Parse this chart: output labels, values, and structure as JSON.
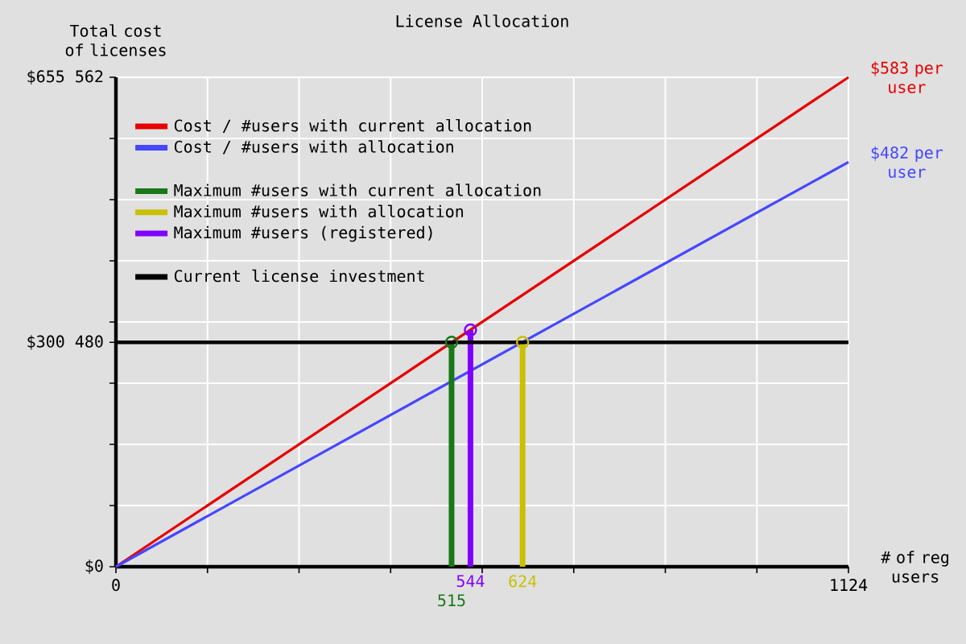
{
  "chart_data": {
    "type": "line",
    "title": "License Allocation",
    "xlabel": "# of reg users",
    "ylabel": "Total cost of licenses",
    "xlim": [
      0,
      1124
    ],
    "ylim": [
      0,
      655562
    ],
    "xticks": [
      0,
      {
        "value": 140.5,
        "label": null
      },
      {
        "value": 281,
        "label": null
      },
      {
        "value": 421.5,
        "label": null
      },
      {
        "value": 562,
        "label": null
      },
      {
        "value": 702.5,
        "label": null
      },
      {
        "value": 843,
        "label": null
      },
      {
        "value": 983.5,
        "label": null
      },
      1124
    ],
    "yticks": [
      {
        "value": 0,
        "label": "$0"
      },
      {
        "value": 81945.25,
        "label": null
      },
      {
        "value": 163890.5,
        "label": null
      },
      {
        "value": 245835.75,
        "label": null
      },
      {
        "value": 300480,
        "label": "$300 480"
      },
      {
        "value": 327781,
        "label": null
      },
      {
        "value": 409726.25,
        "label": null
      },
      {
        "value": 491671.5,
        "label": null
      },
      {
        "value": 573616.75,
        "label": null
      },
      {
        "value": 655562,
        "label": "$655 562"
      }
    ],
    "grid": true,
    "legend": "top left",
    "series": [
      {
        "name": "Cost / #users with current allocation",
        "color": "#e60000",
        "x": [
          0,
          1124
        ],
        "values": [
          0,
          655562
        ]
      },
      {
        "name": "Cost / #users with allocation",
        "color": "#4646ff",
        "x": [
          0,
          1124
        ],
        "values": [
          0,
          542000
        ]
      },
      {
        "name": "Maximum #users with current allocation",
        "color": "#187818",
        "x": [
          515,
          515
        ],
        "values": [
          0,
          300480
        ],
        "marker": "circle"
      },
      {
        "name": "Maximum #users with allocation",
        "color": "#c8c000",
        "x": [
          624,
          624
        ],
        "values": [
          0,
          300480
        ],
        "marker": "circle"
      },
      {
        "name": "Maximum #users (registered)",
        "color": "#8000ff",
        "x": [
          544,
          544
        ],
        "values": [
          0,
          317000
        ],
        "marker": "circle"
      },
      {
        "name": "Current license investment",
        "color": "#000000",
        "x": [
          0,
          1124
        ],
        "values": [
          300480,
          300480
        ]
      }
    ],
    "annotations": [
      {
        "text": "$583 per user",
        "x": 1124,
        "y": 655562
      },
      {
        "text": "$482 per user",
        "x": 1124,
        "y": 542000
      },
      {
        "text": "515",
        "x": 515,
        "y": 0
      },
      {
        "text": "544",
        "x": 544,
        "y": 0
      },
      {
        "text": "624",
        "x": 624,
        "y": 0
      }
    ]
  }
}
